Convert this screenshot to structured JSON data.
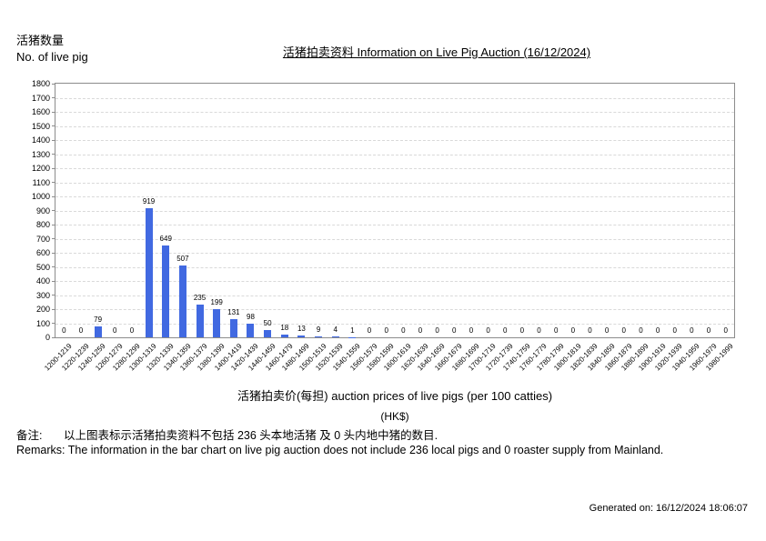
{
  "page": {
    "y_axis_caption_zh": "活猪数量",
    "y_axis_caption_en": "No. of live pig",
    "title": "活猪拍卖资料 Information on Live Pig Auction (16/12/2024)"
  },
  "chart_data": {
    "type": "bar",
    "title": "活猪拍卖资料 Information on Live Pig Auction (16/12/2024)",
    "categories": [
      "1200-1219",
      "1220-1239",
      "1240-1259",
      "1260-1279",
      "1280-1299",
      "1300-1319",
      "1320-1339",
      "1340-1359",
      "1360-1379",
      "1380-1399",
      "1400-1419",
      "1420-1439",
      "1440-1459",
      "1460-1479",
      "1480-1499",
      "1500-1519",
      "1520-1539",
      "1540-1559",
      "1560-1579",
      "1580-1599",
      "1600-1619",
      "1620-1639",
      "1640-1659",
      "1660-1679",
      "1680-1699",
      "1700-1719",
      "1720-1739",
      "1740-1759",
      "1760-1779",
      "1780-1799",
      "1800-1819",
      "1820-1839",
      "1840-1859",
      "1860-1879",
      "1880-1899",
      "1900-1919",
      "1920-1939",
      "1940-1959",
      "1960-1979",
      "1980-1999"
    ],
    "values": [
      0,
      0,
      79,
      0,
      0,
      919,
      649,
      507,
      235,
      199,
      131,
      98,
      50,
      18,
      13,
      9,
      4,
      1,
      0,
      0,
      0,
      0,
      0,
      0,
      0,
      0,
      0,
      0,
      0,
      0,
      0,
      0,
      0,
      0,
      0,
      0,
      0,
      0,
      0,
      0
    ],
    "ylabel": "活猪数量 No. of live pig",
    "xlabel": "活猪拍卖价(每担) auction prices of live pigs (per 100 catties)",
    "xlabel_unit": "(HK$)",
    "ylim": [
      0,
      1800
    ],
    "ytick_step": 100,
    "grid": true,
    "legend": "none",
    "bar_color": "#4169E1"
  },
  "footer": {
    "remark_zh_label": "备注:",
    "remark_zh_text": "以上图表标示活猪拍卖资料不包括 236 头本地活猪 及 0 头内地中猪的数目.",
    "remark_en_text": "Remarks: The information in the bar chart on live pig auction does not include 236 local pigs and 0 roaster supply from Mainland.",
    "generated_on": "Generated on: 16/12/2024 18:06:07"
  }
}
